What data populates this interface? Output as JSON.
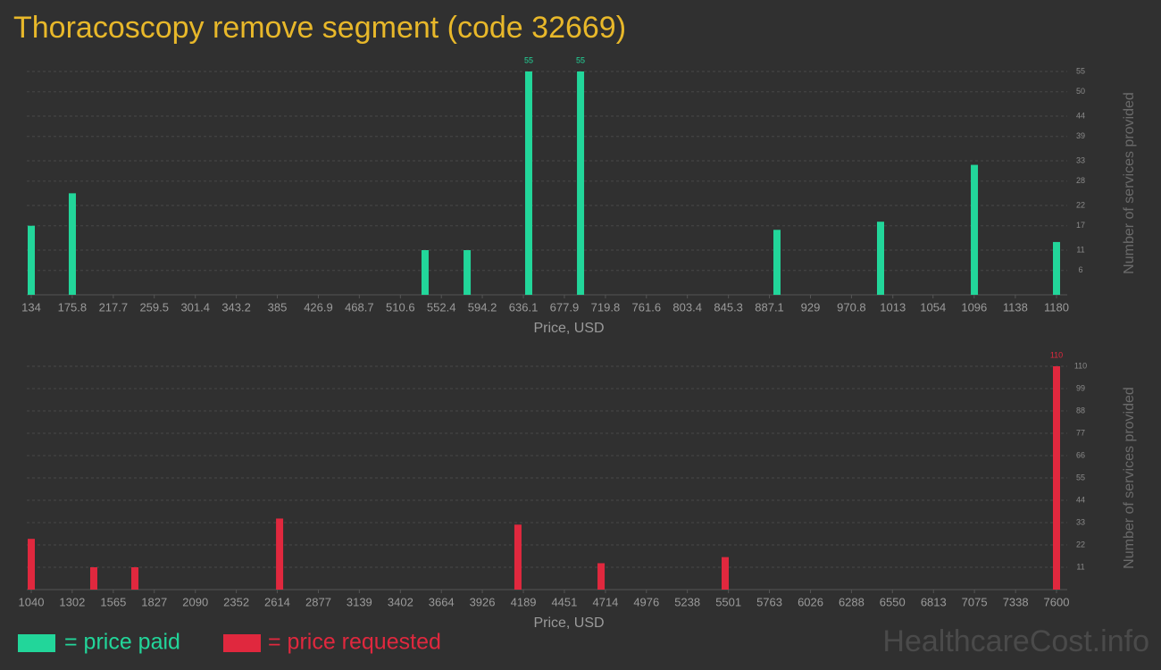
{
  "title": "Thoracoscopy remove segment (code 32669)",
  "watermark": "HealthcareCost.info",
  "chart_data": [
    {
      "type": "bar",
      "xlabel": "Price, USD",
      "ylabel": "Number of services provided",
      "grid": true,
      "x": [
        134,
        175.9,
        535.8,
        578.7,
        641.5,
        694.4,
        894.8,
        1000.5,
        1096.2,
        1180
      ],
      "series": [
        {
          "name": "= price paid",
          "color": "#22d69a",
          "values": [
            17,
            25,
            11,
            11,
            55,
            55,
            16,
            18,
            32,
            13
          ]
        }
      ],
      "xlim": [
        134,
        1180
      ],
      "xticks": [
        134,
        175.8,
        217.7,
        259.5,
        301.4,
        343.2,
        385,
        426.9,
        468.7,
        510.6,
        552.4,
        594.2,
        636.1,
        677.9,
        719.8,
        761.6,
        803.4,
        845.3,
        887.1,
        929,
        970.8,
        1013,
        1054,
        1096,
        1138,
        1180
      ],
      "ylim": [
        0,
        55
      ],
      "yticks": [
        6,
        11,
        17,
        22,
        28,
        33,
        39,
        44,
        50,
        55
      ]
    },
    {
      "type": "bar",
      "xlabel": "Price, USD",
      "ylabel": "Number of services provided",
      "grid": true,
      "x": [
        1040,
        1440,
        1703,
        2629,
        4154,
        4686,
        5480,
        7600
      ],
      "series": [
        {
          "name": "= price requested",
          "color": "#e0283e",
          "values": [
            25,
            11,
            11,
            35,
            32,
            13,
            16,
            110
          ]
        }
      ],
      "xlim": [
        1040,
        7600
      ],
      "xticks": [
        1040,
        1302,
        1565,
        1827,
        2090,
        2352,
        2614,
        2877,
        3139,
        3402,
        3664,
        3926,
        4189,
        4451,
        4714,
        4976,
        5238,
        5501,
        5763,
        6026,
        6288,
        6550,
        6813,
        7075,
        7338,
        7600
      ],
      "ylim": [
        0,
        110
      ],
      "yticks": [
        11,
        22,
        33,
        44,
        55,
        66,
        77,
        88,
        99,
        110
      ]
    }
  ]
}
